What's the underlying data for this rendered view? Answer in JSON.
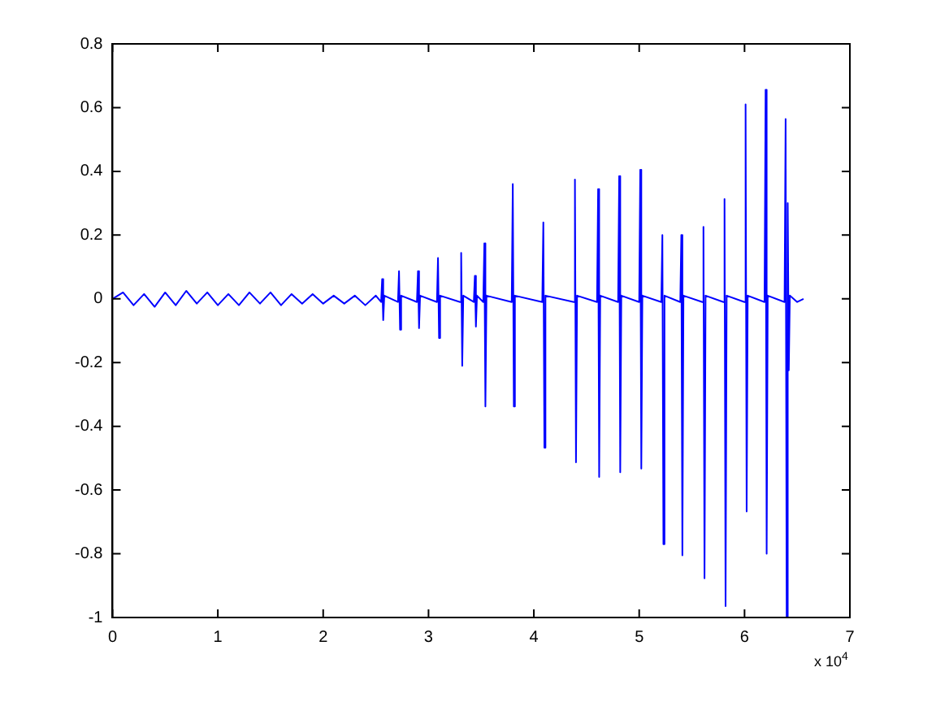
{
  "chart_data": {
    "type": "line",
    "xlim": [
      0,
      7
    ],
    "ylim": [
      -1,
      0.8
    ],
    "xticks": [
      0,
      1,
      2,
      3,
      4,
      5,
      6,
      7
    ],
    "yticks": [
      -1,
      -0.8,
      -0.6,
      -0.4,
      -0.2,
      0,
      0.2,
      0.4,
      0.6,
      0.8
    ],
    "annotations": [
      "x 10$^{4}$"
    ],
    "series": [
      {
        "color": "#0000ff",
        "x": [
          0,
          0.1,
          0.2,
          0.3,
          0.4,
          0.5,
          0.6,
          0.7,
          0.8,
          0.9,
          1.0,
          1.1,
          1.2,
          1.3,
          1.4,
          1.5,
          1.6,
          1.7,
          1.8,
          1.9,
          2.0,
          2.1,
          2.2,
          2.3,
          2.4,
          2.5,
          2.55,
          2.56,
          2.57,
          2.58,
          2.71,
          2.72,
          2.73,
          2.74,
          2.89,
          2.9,
          2.91,
          2.92,
          3.08,
          3.09,
          3.1,
          3.11,
          3.3,
          3.31,
          3.32,
          3.33,
          3.43,
          3.44,
          3.45,
          3.46,
          3.52,
          3.53,
          3.54,
          3.55,
          3.79,
          3.8,
          3.81,
          3.82,
          4.08,
          4.09,
          4.1,
          4.11,
          4.38,
          4.39,
          4.4,
          4.41,
          4.6,
          4.61,
          4.62,
          4.63,
          4.8,
          4.81,
          4.82,
          4.83,
          5.0,
          5.01,
          5.02,
          5.03,
          5.21,
          5.22,
          5.23,
          5.24,
          5.39,
          5.4,
          5.41,
          5.42,
          5.6,
          5.61,
          5.62,
          5.63,
          5.8,
          5.81,
          5.82,
          5.83,
          6.0,
          6.01,
          6.02,
          6.03,
          6.19,
          6.2,
          6.21,
          6.22,
          6.38,
          6.39,
          6.4,
          6.41,
          6.42,
          6.43,
          6.5,
          6.56
        ],
        "values": [
          0,
          0.02,
          -0.02,
          0.015,
          -0.025,
          0.02,
          -0.02,
          0.025,
          -0.015,
          0.02,
          -0.02,
          0.015,
          -0.02,
          0.02,
          -0.015,
          0.02,
          -0.02,
          0.015,
          -0.015,
          0.015,
          -0.015,
          0.01,
          -0.015,
          0.01,
          -0.02,
          0.01,
          -0.01,
          0.062,
          -0.067,
          0.01,
          -0.01,
          0.087,
          -0.097,
          0.01,
          -0.01,
          0.087,
          -0.092,
          0.01,
          -0.01,
          0.128,
          -0.123,
          0.01,
          -0.01,
          0.144,
          -0.21,
          0.01,
          -0.01,
          0.072,
          -0.087,
          0.01,
          -0.01,
          0.174,
          -0.338,
          0.01,
          -0.01,
          0.36,
          -0.338,
          0.01,
          -0.01,
          0.24,
          -0.467,
          0.01,
          -0.01,
          0.374,
          -0.513,
          0.01,
          -0.01,
          0.344,
          -0.559,
          0.01,
          -0.01,
          0.385,
          -0.544,
          0.01,
          -0.01,
          0.405,
          -0.533,
          0.01,
          -0.01,
          0.2,
          -0.77,
          0.01,
          -0.01,
          0.2,
          -0.805,
          0.01,
          -0.01,
          0.226,
          -0.877,
          0.01,
          -0.01,
          0.313,
          -0.964,
          0.01,
          -0.01,
          0.61,
          -0.667,
          0.01,
          -0.01,
          0.656,
          -0.8,
          0.01,
          -0.01,
          0.564,
          -1.0,
          0.3,
          -0.224,
          0.01,
          -0.01,
          0
        ]
      }
    ]
  }
}
